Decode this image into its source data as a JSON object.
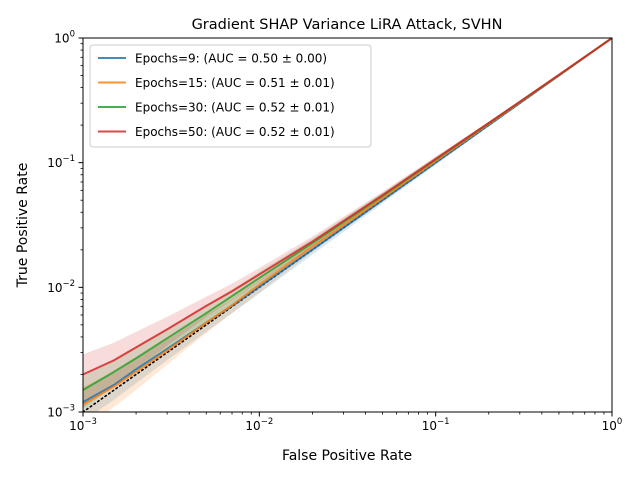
{
  "chart_data": {
    "type": "line",
    "title": "Gradient SHAP Variance LiRA Attack, SVHN",
    "xlabel": "False Positive Rate",
    "ylabel": "True Positive Rate",
    "xscale": "log",
    "yscale": "log",
    "xlim": [
      0.001,
      1
    ],
    "ylim": [
      0.001,
      1
    ],
    "xticks": [
      {
        "base": "10",
        "exp": "−3"
      },
      {
        "base": "10",
        "exp": "−2"
      },
      {
        "base": "10",
        "exp": "−1"
      },
      {
        "base": "10",
        "exp": "0"
      }
    ],
    "yticks": [
      {
        "base": "10",
        "exp": "−3"
      },
      {
        "base": "10",
        "exp": "−2"
      },
      {
        "base": "10",
        "exp": "−1"
      },
      {
        "base": "10",
        "exp": "0"
      }
    ],
    "legend_position": "top-left",
    "diagonal": {
      "style": "dotted",
      "color": "#000000"
    },
    "series": [
      {
        "name": "Epochs=9: (AUC = 0.50 ± 0.00)",
        "color": "#1f77b4",
        "x": [
          0.001,
          0.0015,
          0.002,
          0.003,
          0.005,
          0.007,
          0.01,
          0.02,
          0.05,
          0.1,
          0.2,
          0.5,
          1.0
        ],
        "y": [
          0.0012,
          0.00165,
          0.0022,
          0.0032,
          0.0052,
          0.0071,
          0.0101,
          0.0201,
          0.0501,
          0.1,
          0.2,
          0.5,
          1.0
        ],
        "band": [
          0.00035,
          0.0004,
          0.0005,
          0.0006,
          0.0008,
          0.0009,
          0.0012,
          0.0018,
          0.003,
          0.004,
          0.005,
          0.006,
          0.0
        ]
      },
      {
        "name": "Epochs=15: (AUC = 0.51 ± 0.01)",
        "color": "#ff7f0e",
        "x": [
          0.001,
          0.0015,
          0.002,
          0.003,
          0.005,
          0.007,
          0.01,
          0.02,
          0.05,
          0.1,
          0.2,
          0.5,
          1.0
        ],
        "y": [
          0.00115,
          0.0016,
          0.0021,
          0.0031,
          0.0052,
          0.0072,
          0.0105,
          0.0212,
          0.052,
          0.103,
          0.204,
          0.502,
          1.0
        ],
        "band": [
          0.00045,
          0.0005,
          0.0006,
          0.0007,
          0.0009,
          0.001,
          0.0014,
          0.002,
          0.0035,
          0.005,
          0.006,
          0.007,
          0.0
        ]
      },
      {
        "name": "Epochs=30: (AUC = 0.52 ± 0.01)",
        "color": "#2ca02c",
        "x": [
          0.001,
          0.0015,
          0.002,
          0.003,
          0.005,
          0.007,
          0.01,
          0.02,
          0.05,
          0.1,
          0.2,
          0.5,
          1.0
        ],
        "y": [
          0.0015,
          0.0021,
          0.0027,
          0.0039,
          0.0062,
          0.0085,
          0.0119,
          0.0226,
          0.054,
          0.106,
          0.207,
          0.505,
          1.0
        ],
        "band": [
          0.00045,
          0.0005,
          0.0006,
          0.0007,
          0.0009,
          0.0011,
          0.0014,
          0.002,
          0.0035,
          0.005,
          0.006,
          0.007,
          0.0
        ]
      },
      {
        "name": "Epochs=50: (AUC = 0.52 ± 0.01)",
        "color": "#d62728",
        "x": [
          0.001,
          0.0015,
          0.002,
          0.003,
          0.005,
          0.007,
          0.01,
          0.02,
          0.05,
          0.1,
          0.2,
          0.5,
          1.0
        ],
        "y": [
          0.002,
          0.0026,
          0.0033,
          0.0046,
          0.0071,
          0.0093,
          0.0127,
          0.0233,
          0.055,
          0.107,
          0.208,
          0.506,
          1.0
        ],
        "band": [
          0.0009,
          0.001,
          0.0011,
          0.0012,
          0.0013,
          0.0014,
          0.0016,
          0.0022,
          0.0035,
          0.005,
          0.006,
          0.007,
          0.0
        ]
      }
    ]
  }
}
